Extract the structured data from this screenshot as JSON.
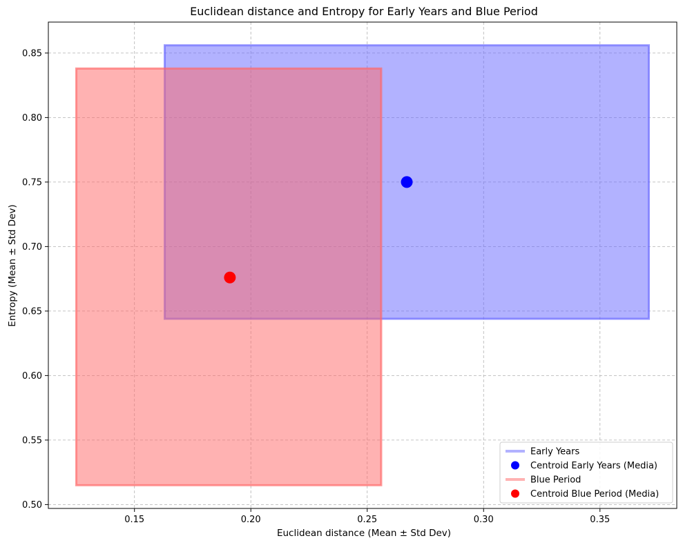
{
  "chart_data": {
    "type": "scatter",
    "title": "Euclidean distance and Entropy for Early Years and Blue Period",
    "xlabel": "Euclidean distance (Mean ± Std Dev)",
    "ylabel": "Entropy (Mean ± Std Dev)",
    "xlim": [
      0.113,
      0.383
    ],
    "ylim": [
      0.497,
      0.874
    ],
    "xticks": [
      "0.15",
      "0.20",
      "0.25",
      "0.30",
      "0.35"
    ],
    "yticks": [
      "0.50",
      "0.55",
      "0.60",
      "0.65",
      "0.70",
      "0.75",
      "0.80",
      "0.85"
    ],
    "grid": true,
    "legend_position": "bottom-right",
    "series": [
      {
        "name": "Early Years",
        "color": "#6666ff",
        "rect": {
          "x_min": 0.163,
          "x_max": 0.371,
          "y_min": 0.644,
          "y_max": 0.856
        },
        "centroid": {
          "label": "Centroid Early Years (Media)",
          "x": 0.267,
          "y": 0.75,
          "color": "#0000ff"
        }
      },
      {
        "name": "Blue Period",
        "color": "#ff6666",
        "rect": {
          "x_min": 0.125,
          "x_max": 0.256,
          "y_min": 0.515,
          "y_max": 0.838
        },
        "centroid": {
          "label": "Centroid Blue Period (Media)",
          "x": 0.191,
          "y": 0.676,
          "color": "#ff0000"
        }
      }
    ]
  }
}
